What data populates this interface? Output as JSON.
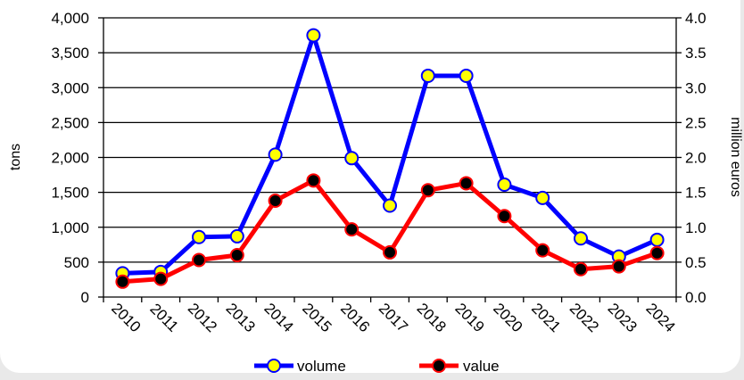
{
  "chart_data": {
    "type": "line",
    "x": [
      "2010",
      "2011",
      "2012",
      "2013",
      "2014",
      "2015",
      "2016",
      "2017",
      "2018",
      "2019",
      "2020",
      "2021",
      "2022",
      "2023",
      "2024"
    ],
    "series": [
      {
        "name": "volume",
        "axis": "left",
        "color": "#0000ff",
        "marker_fill": "#ffff00",
        "values": [
          340,
          360,
          860,
          870,
          2040,
          3750,
          1990,
          1310,
          3170,
          3170,
          1610,
          1420,
          840,
          580,
          820
        ]
      },
      {
        "name": "value",
        "axis": "right",
        "color": "#ff0000",
        "marker_fill": "#000000",
        "values": [
          0.22,
          0.26,
          0.53,
          0.6,
          1.38,
          1.67,
          0.97,
          0.64,
          1.53,
          1.63,
          1.16,
          0.67,
          0.4,
          0.44,
          0.63
        ]
      }
    ],
    "ylabel": "tons",
    "y2label": "million euros",
    "ylim": [
      0,
      4000
    ],
    "y2lim": [
      0,
      4.0
    ],
    "yticks": [
      "0",
      "500",
      "1,000",
      "1,500",
      "2,000",
      "2,500",
      "3,000",
      "3,500",
      "4,000"
    ],
    "y2ticks": [
      "0.0",
      "0.5",
      "1.0",
      "1.5",
      "2.0",
      "2.5",
      "3.0",
      "3.5",
      "4.0"
    ],
    "grid": "horizontal",
    "legend_position": "bottom"
  }
}
